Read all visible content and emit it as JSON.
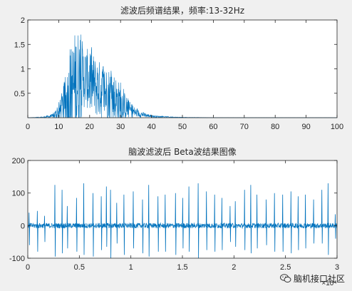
{
  "colors": {
    "figure_bg": "#f0f0f0",
    "axes_bg": "#ffffff",
    "line": "#0072bd",
    "axis": "#262626"
  },
  "watermark": {
    "icon": "wechat-icon",
    "text": "脑机接口社区"
  },
  "chart_data": [
    {
      "type": "line",
      "title": "滤波后频谱结果，频率:13-32Hz",
      "xlabel": "",
      "ylabel": "",
      "xlim": [
        0,
        100
      ],
      "ylim": [
        0,
        2
      ],
      "xticks": [
        0,
        10,
        20,
        30,
        40,
        50,
        60,
        70,
        80,
        90,
        100
      ],
      "xtick_labels": [
        "0",
        "10",
        "20",
        "30",
        "40",
        "50",
        "60",
        "70",
        "80",
        "90",
        "100"
      ],
      "yticks": [
        0.5,
        1,
        1.5,
        2
      ],
      "ytick_labels": [
        "0.5",
        "1",
        "1.5",
        "2"
      ],
      "grid": false,
      "series": [
        {
          "x": [
            0,
            5,
            8,
            10,
            12,
            13,
            14,
            15,
            16,
            17,
            18,
            19,
            20,
            21,
            22,
            23,
            24,
            25,
            26,
            27,
            28,
            29,
            30,
            31,
            32,
            33,
            34,
            35,
            36,
            38,
            40,
            42,
            45,
            48,
            52,
            56,
            60,
            70,
            80,
            90,
            100
          ],
          "y": [
            0,
            0.01,
            0.03,
            0.1,
            0.25,
            0.4,
            0.55,
            0.65,
            0.72,
            0.8,
            0.85,
            0.8,
            0.75,
            0.7,
            0.62,
            0.58,
            0.55,
            0.5,
            0.45,
            0.42,
            0.38,
            0.33,
            0.3,
            0.25,
            0.2,
            0.16,
            0.13,
            0.1,
            0.08,
            0.05,
            0.03,
            0.02,
            0.015,
            0.01,
            0.005,
            0.003,
            0.002,
            0.001,
            0.001,
            0.001,
            0.001
          ],
          "peak_envelope": [
            0,
            0.02,
            0.08,
            0.3,
            0.8,
            1.2,
            1.55,
            1.85,
            2.03,
            1.8,
            1.6,
            1.45,
            1.55,
            1.4,
            1.3,
            1.25,
            1.2,
            1.1,
            1.15,
            1.05,
            1.0,
            0.85,
            0.75,
            0.6,
            0.45,
            0.35,
            0.28,
            0.2,
            0.16,
            0.1,
            0.06,
            0.04,
            0.025,
            0.015,
            0.008,
            0.005,
            0.003,
            0.002,
            0.002,
            0.002,
            0.002
          ]
        }
      ]
    },
    {
      "type": "line",
      "title": "脑波滤波后 Beta波结果图像",
      "xlabel": "",
      "ylabel": "",
      "xlim": [
        0,
        30000
      ],
      "ylim": [
        -100,
        200
      ],
      "xticks": [
        0,
        5000,
        10000,
        15000,
        20000,
        25000,
        30000
      ],
      "xtick_labels": [
        "0",
        "0.5",
        "1",
        "1.5",
        "2",
        "2.5",
        "3"
      ],
      "x_exponent_label": "×10⁴",
      "yticks": [
        -100,
        0,
        100,
        200
      ],
      "ytick_labels": [
        "-100",
        "0",
        "100",
        "200"
      ],
      "grid": false,
      "series": [
        {
          "baseline_amplitude": 8,
          "spikes": [
            [
              100,
              40,
              -60
            ],
            [
              900,
              45,
              -80
            ],
            [
              1600,
              30,
              -50
            ],
            [
              2600,
              125,
              -95
            ],
            [
              3300,
              110,
              -85
            ],
            [
              3800,
              60,
              -70
            ],
            [
              4700,
              85,
              -80
            ],
            [
              5400,
              130,
              -90
            ],
            [
              6300,
              100,
              -95
            ],
            [
              7100,
              90,
              -75
            ],
            [
              7600,
              120,
              -65
            ],
            [
              8000,
              110,
              -100
            ],
            [
              8600,
              70,
              -55
            ],
            [
              9300,
              95,
              -90
            ],
            [
              10200,
              105,
              -70
            ],
            [
              11100,
              80,
              -85
            ],
            [
              11700,
              125,
              -95
            ],
            [
              12600,
              90,
              -80
            ],
            [
              13300,
              95,
              -80
            ],
            [
              14300,
              100,
              -90
            ],
            [
              15000,
              85,
              -70
            ],
            [
              15600,
              120,
              -80
            ],
            [
              16500,
              130,
              -100
            ],
            [
              17300,
              105,
              -75
            ],
            [
              18100,
              95,
              -80
            ],
            [
              18800,
              85,
              -75
            ],
            [
              19600,
              60,
              -50
            ],
            [
              20100,
              75,
              -65
            ],
            [
              21000,
              110,
              -75
            ],
            [
              21600,
              125,
              -85
            ],
            [
              22200,
              95,
              -70
            ],
            [
              23100,
              80,
              -60
            ],
            [
              23900,
              100,
              -80
            ],
            [
              24700,
              95,
              -80
            ],
            [
              25500,
              105,
              -85
            ],
            [
              26200,
              90,
              -75
            ],
            [
              26900,
              95,
              -70
            ],
            [
              27700,
              80,
              -55
            ],
            [
              28500,
              110,
              -55
            ],
            [
              29100,
              130,
              -90
            ],
            [
              29800,
              35,
              -40
            ]
          ]
        }
      ]
    }
  ]
}
